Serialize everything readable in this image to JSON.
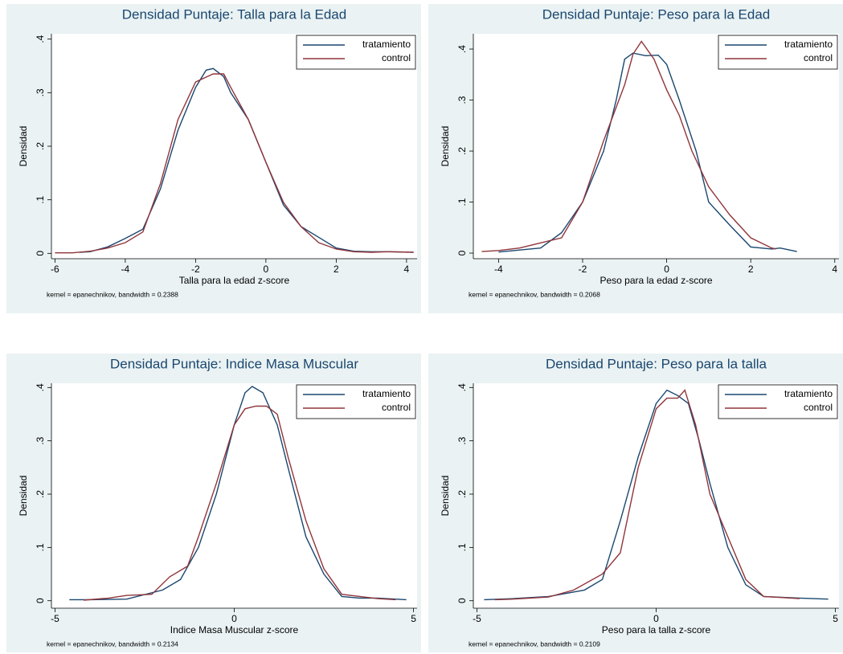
{
  "chart_data": [
    {
      "type": "line",
      "title": "Densidad Puntaje: Talla para la Edad",
      "xlabel": "Talla para la edad z-score",
      "ylabel": "Densidad",
      "note": "kernel = epanechnikov, bandwidth = 0.2388",
      "legend": "upper right",
      "grid": false,
      "xlim": [
        -6.1,
        4.3
      ],
      "ylim": [
        -0.01,
        0.41
      ],
      "xticks": [
        -6,
        -4,
        -2,
        0,
        2,
        4
      ],
      "yticks": [
        0,
        {
          "value": 0.1,
          "label": ".1"
        },
        {
          "value": 0.2,
          "label": ".2"
        },
        {
          "value": 0.3,
          "label": ".3"
        },
        {
          "value": 0.4,
          "label": ".4"
        }
      ],
      "series": [
        {
          "name": "tratamiento",
          "color": "#1a476f",
          "x": [
            -5.3,
            -5,
            -4.5,
            -4,
            -3.5,
            -3,
            -2.5,
            -2,
            -1.7,
            -1.5,
            -1.2,
            -1,
            -0.5,
            0,
            0.5,
            1,
            1.5,
            2,
            2.5,
            3,
            3.5,
            4.2
          ],
          "values": [
            0.002,
            0.003,
            0.012,
            0.028,
            0.045,
            0.12,
            0.23,
            0.31,
            0.342,
            0.345,
            0.33,
            0.3,
            0.25,
            0.17,
            0.09,
            0.05,
            0.03,
            0.01,
            0.004,
            0.003,
            0.003,
            0.002
          ]
        },
        {
          "name": "control",
          "color": "#90353b",
          "x": [
            -6,
            -5.5,
            -5,
            -4.5,
            -4,
            -3.5,
            -3,
            -2.5,
            -2,
            -1.5,
            -1.2,
            -1,
            -0.5,
            0,
            0.5,
            1,
            1.5,
            2,
            2.5,
            3,
            3.5,
            4.2
          ],
          "values": [
            0.001,
            0.001,
            0.004,
            0.01,
            0.02,
            0.04,
            0.13,
            0.25,
            0.32,
            0.335,
            0.335,
            0.31,
            0.25,
            0.17,
            0.095,
            0.05,
            0.02,
            0.008,
            0.003,
            0.002,
            0.003,
            0.002
          ]
        }
      ]
    },
    {
      "type": "line",
      "title": "Densidad Puntaje: Peso para la Edad",
      "xlabel": "Peso para la edad z-score",
      "ylabel": "Densidad",
      "note": "kernel = epanechnikov, bandwidth = 0.2068",
      "legend": "upper right",
      "grid": false,
      "xlim": [
        -4.6,
        4.1
      ],
      "ylim": [
        -0.011,
        0.43
      ],
      "xticks": [
        -4,
        -2,
        0,
        2,
        4
      ],
      "yticks": [
        0,
        {
          "value": 0.1,
          "label": ".1"
        },
        {
          "value": 0.2,
          "label": ".2"
        },
        {
          "value": 0.3,
          "label": ".3"
        },
        {
          "value": 0.4,
          "label": ".4"
        }
      ],
      "series": [
        {
          "name": "tratamiento",
          "color": "#1a476f",
          "x": [
            -4,
            -3.5,
            -3,
            -2.5,
            -2,
            -1.5,
            -1.2,
            -1,
            -0.8,
            -0.5,
            -0.2,
            0,
            0.3,
            0.7,
            1,
            1.5,
            2,
            2.5,
            2.7,
            3.1
          ],
          "values": [
            0.002,
            0.006,
            0.01,
            0.04,
            0.1,
            0.2,
            0.3,
            0.38,
            0.392,
            0.387,
            0.388,
            0.37,
            0.3,
            0.2,
            0.1,
            0.055,
            0.012,
            0.008,
            0.01,
            0.003
          ]
        },
        {
          "name": "control",
          "color": "#90353b",
          "x": [
            -4.4,
            -4,
            -3.5,
            -3,
            -2.5,
            -2,
            -1.5,
            -1,
            -0.8,
            -0.6,
            -0.3,
            0,
            0.3,
            0.6,
            1,
            1.5,
            2,
            2.5,
            2.6
          ],
          "values": [
            0.003,
            0.005,
            0.01,
            0.02,
            0.03,
            0.1,
            0.22,
            0.33,
            0.39,
            0.415,
            0.38,
            0.32,
            0.27,
            0.2,
            0.13,
            0.075,
            0.03,
            0.01,
            0.008
          ]
        }
      ]
    },
    {
      "type": "line",
      "title": "Densidad Puntaje: Indice Masa Muscular",
      "xlabel": "Indice Masa Muscular z-score",
      "ylabel": "Densidad",
      "note": "kernel = epanechnikov, bandwidth = 0.2134",
      "legend": "upper right",
      "grid": false,
      "xlim": [
        -5.1,
        5.1
      ],
      "ylim": [
        -0.014,
        0.408
      ],
      "xticks": [
        -5,
        0,
        5
      ],
      "yticks": [
        0,
        {
          "value": 0.1,
          "label": ".1"
        },
        {
          "value": 0.2,
          "label": ".2"
        },
        {
          "value": 0.3,
          "label": ".3"
        },
        {
          "value": 0.4,
          "label": ".4"
        }
      ],
      "series": [
        {
          "name": "tratamiento",
          "color": "#1a476f",
          "x": [
            -4.6,
            -4,
            -3,
            -2,
            -1.5,
            -1,
            -0.5,
            0,
            0.3,
            0.5,
            0.8,
            1.2,
            1.5,
            2,
            2.5,
            3,
            3.5,
            4,
            4.8
          ],
          "values": [
            0.002,
            0.002,
            0.003,
            0.02,
            0.04,
            0.1,
            0.2,
            0.33,
            0.39,
            0.402,
            0.39,
            0.33,
            0.25,
            0.12,
            0.05,
            0.008,
            0.005,
            0.005,
            0.002
          ]
        },
        {
          "name": "control",
          "color": "#90353b",
          "x": [
            -4.2,
            -3.5,
            -3,
            -2.3,
            -1.8,
            -1.3,
            -1,
            -0.5,
            0,
            0.3,
            0.6,
            0.9,
            1.2,
            1.5,
            2,
            2.5,
            3,
            3.5,
            4,
            4.5
          ],
          "values": [
            0.001,
            0.005,
            0.01,
            0.012,
            0.045,
            0.065,
            0.12,
            0.22,
            0.33,
            0.36,
            0.365,
            0.365,
            0.35,
            0.27,
            0.15,
            0.06,
            0.012,
            0.008,
            0.004,
            0.002
          ]
        }
      ]
    },
    {
      "type": "line",
      "title": "Densidad Puntaje: Peso para la talla",
      "xlabel": "Peso para la talla z-score",
      "ylabel": "Densidad",
      "note": "kernel = epanechnikov, bandwidth = 0.2109",
      "legend": "upper right",
      "grid": false,
      "xlim": [
        -5.1,
        5.1
      ],
      "ylim": [
        -0.014,
        0.408
      ],
      "xticks": [
        -5,
        0,
        5
      ],
      "yticks": [
        0,
        {
          "value": 0.1,
          "label": ".1"
        },
        {
          "value": 0.2,
          "label": ".2"
        },
        {
          "value": 0.3,
          "label": ".3"
        },
        {
          "value": 0.4,
          "label": ".4"
        }
      ],
      "series": [
        {
          "name": "tratamiento",
          "color": "#1a476f",
          "x": [
            -4.8,
            -4,
            -3,
            -2,
            -1.5,
            -1,
            -0.5,
            0,
            0.3,
            0.6,
            0.9,
            1.2,
            1.5,
            2,
            2.5,
            3,
            4,
            4.8
          ],
          "values": [
            0.002,
            0.004,
            0.008,
            0.02,
            0.04,
            0.15,
            0.27,
            0.37,
            0.395,
            0.385,
            0.37,
            0.3,
            0.22,
            0.1,
            0.03,
            0.008,
            0.005,
            0.003
          ]
        },
        {
          "name": "control",
          "color": "#90353b",
          "x": [
            -4.5,
            -4,
            -3,
            -2.3,
            -1.5,
            -1,
            -0.5,
            0,
            0.3,
            0.6,
            0.8,
            1.1,
            1.5,
            2,
            2.5,
            3,
            3.5,
            4
          ],
          "values": [
            0.002,
            0.003,
            0.007,
            0.02,
            0.05,
            0.09,
            0.25,
            0.36,
            0.38,
            0.38,
            0.395,
            0.33,
            0.2,
            0.12,
            0.04,
            0.008,
            0.006,
            0.004
          ]
        }
      ]
    }
  ]
}
